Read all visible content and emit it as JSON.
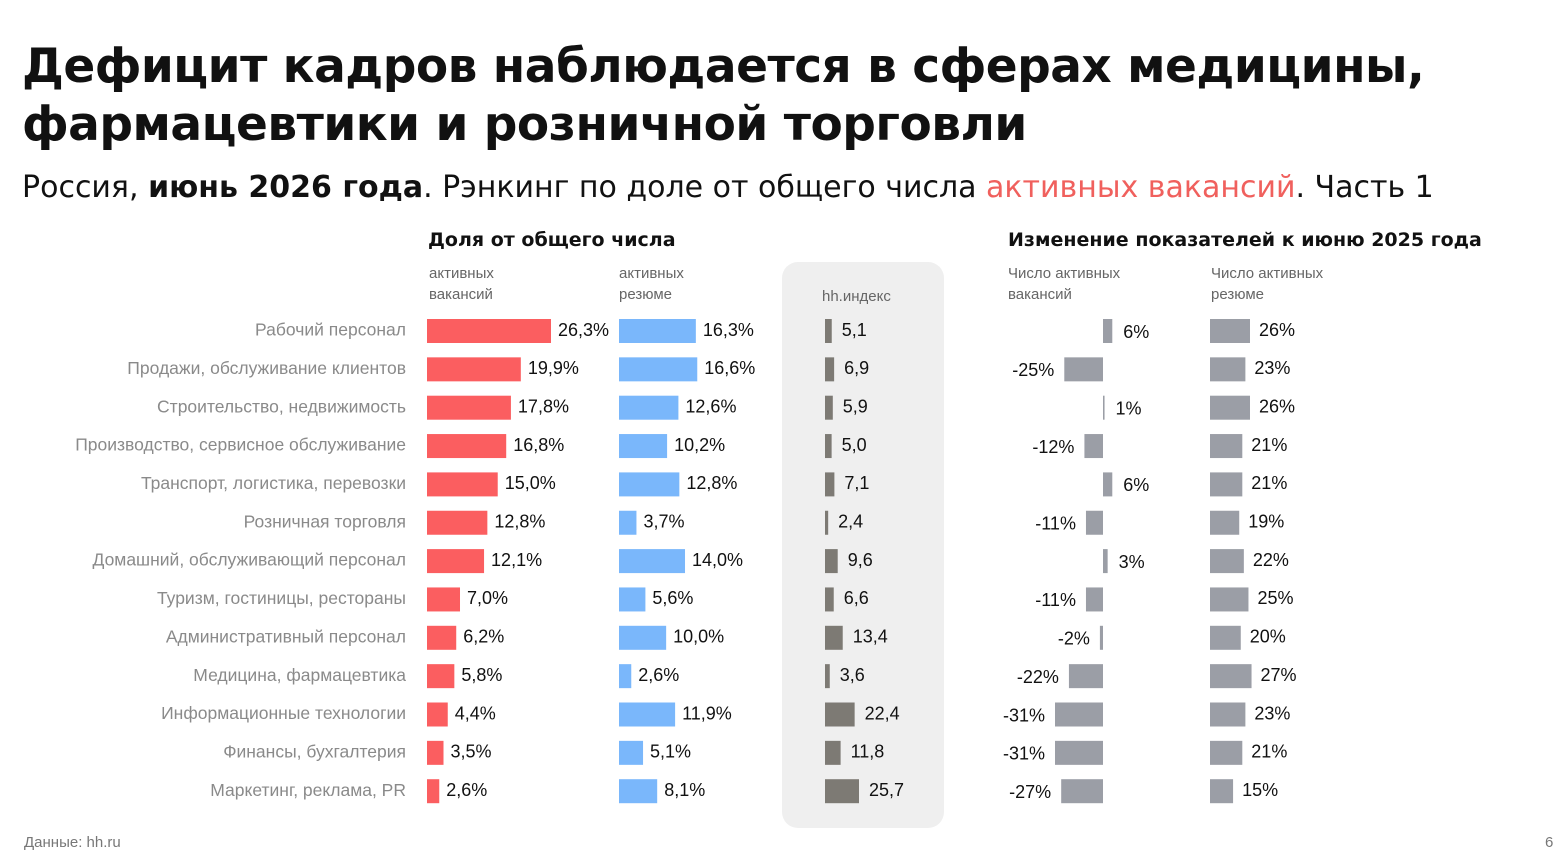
{
  "title": "Дефицит кадров наблюдается в сферах медицины, фармацевтики и розничной торговли",
  "subtitle": {
    "part1": "Россия, ",
    "part2_bold": "июнь 2026 года",
    "part3": ". Рэнкинг по доле от общего числа ",
    "part4_accent": "активных вакансий",
    "part5": ". Часть 1"
  },
  "headers": {
    "share": "Доля от общего числа",
    "change": "Изменение показателей к июню 2025 года",
    "vacancies": "активных вакансий",
    "resumes": "активных резюме",
    "hh_index": "hh.индекс",
    "vac_change": "Число активных вакансий",
    "res_change": "Число активных резюме"
  },
  "footer": "Данные: hh.ru",
  "page_number": "6",
  "colors": {
    "vacancies": "#fb5e60",
    "resumes": "#7ab7fb",
    "hh_index": "#7d7a74",
    "change": "#9b9ea6",
    "panel": "#efefef",
    "accent_text": "#f0605d"
  },
  "chart_data": {
    "type": "bar",
    "categories": [
      "Рабочий персонал",
      "Продажи, обслуживание клиентов",
      "Строительство, недвижимость",
      "Производство, сервисное обслуживание",
      "Транспорт, логистика, перевозки",
      "Розничная торговля",
      "Домашний, обслуживающий персонал",
      "Туризм, гостиницы, рестораны",
      "Административный персонал",
      "Медицина, фармацевтика",
      "Информационные технологии",
      "Финансы, бухгалтерия",
      "Маркетинг, реклама, PR"
    ],
    "series": [
      {
        "name": "активных вакансий",
        "values": [
          26.3,
          19.9,
          17.8,
          16.8,
          15.0,
          12.8,
          12.1,
          7.0,
          6.2,
          5.8,
          4.4,
          3.5,
          2.6
        ],
        "labels": [
          "26,3%",
          "19,9%",
          "17,8%",
          "16,8%",
          "15,0%",
          "12,8%",
          "12,1%",
          "7,0%",
          "6,2%",
          "5,8%",
          "4,4%",
          "3,5%",
          "2,6%"
        ]
      },
      {
        "name": "активных резюме",
        "values": [
          16.3,
          16.6,
          12.6,
          10.2,
          12.8,
          3.7,
          14.0,
          5.6,
          10.0,
          2.6,
          11.9,
          5.1,
          8.1
        ],
        "labels": [
          "16,3%",
          "16,6%",
          "12,6%",
          "10,2%",
          "12,8%",
          "3,7%",
          "14,0%",
          "5,6%",
          "10,0%",
          "2,6%",
          "11,9%",
          "5,1%",
          "8,1%"
        ]
      },
      {
        "name": "hh.индекс",
        "values": [
          5.1,
          6.9,
          5.9,
          5.0,
          7.1,
          2.4,
          9.6,
          6.6,
          13.4,
          3.6,
          22.4,
          11.8,
          25.7
        ],
        "labels": [
          "5,1",
          "6,9",
          "5,9",
          "5,0",
          "7,1",
          "2,4",
          "9,6",
          "6,6",
          "13,4",
          "3,6",
          "22,4",
          "11,8",
          "25,7"
        ]
      },
      {
        "name": "Число активных вакансий",
        "values": [
          6,
          -25,
          1,
          -12,
          6,
          -11,
          3,
          -11,
          -2,
          -22,
          -31,
          -31,
          -27
        ],
        "labels": [
          "6%",
          "-25%",
          "1%",
          "-12%",
          "6%",
          "-11%",
          "3%",
          "-11%",
          "-2%",
          "-22%",
          "-31%",
          "-31%",
          "-27%"
        ]
      },
      {
        "name": "Число активных резюме",
        "values": [
          26,
          23,
          26,
          21,
          21,
          19,
          22,
          25,
          20,
          27,
          23,
          21,
          15
        ],
        "labels": [
          "26%",
          "23%",
          "26%",
          "21%",
          "21%",
          "19%",
          "22%",
          "25%",
          "20%",
          "27%",
          "23%",
          "21%",
          "15%"
        ]
      }
    ]
  }
}
